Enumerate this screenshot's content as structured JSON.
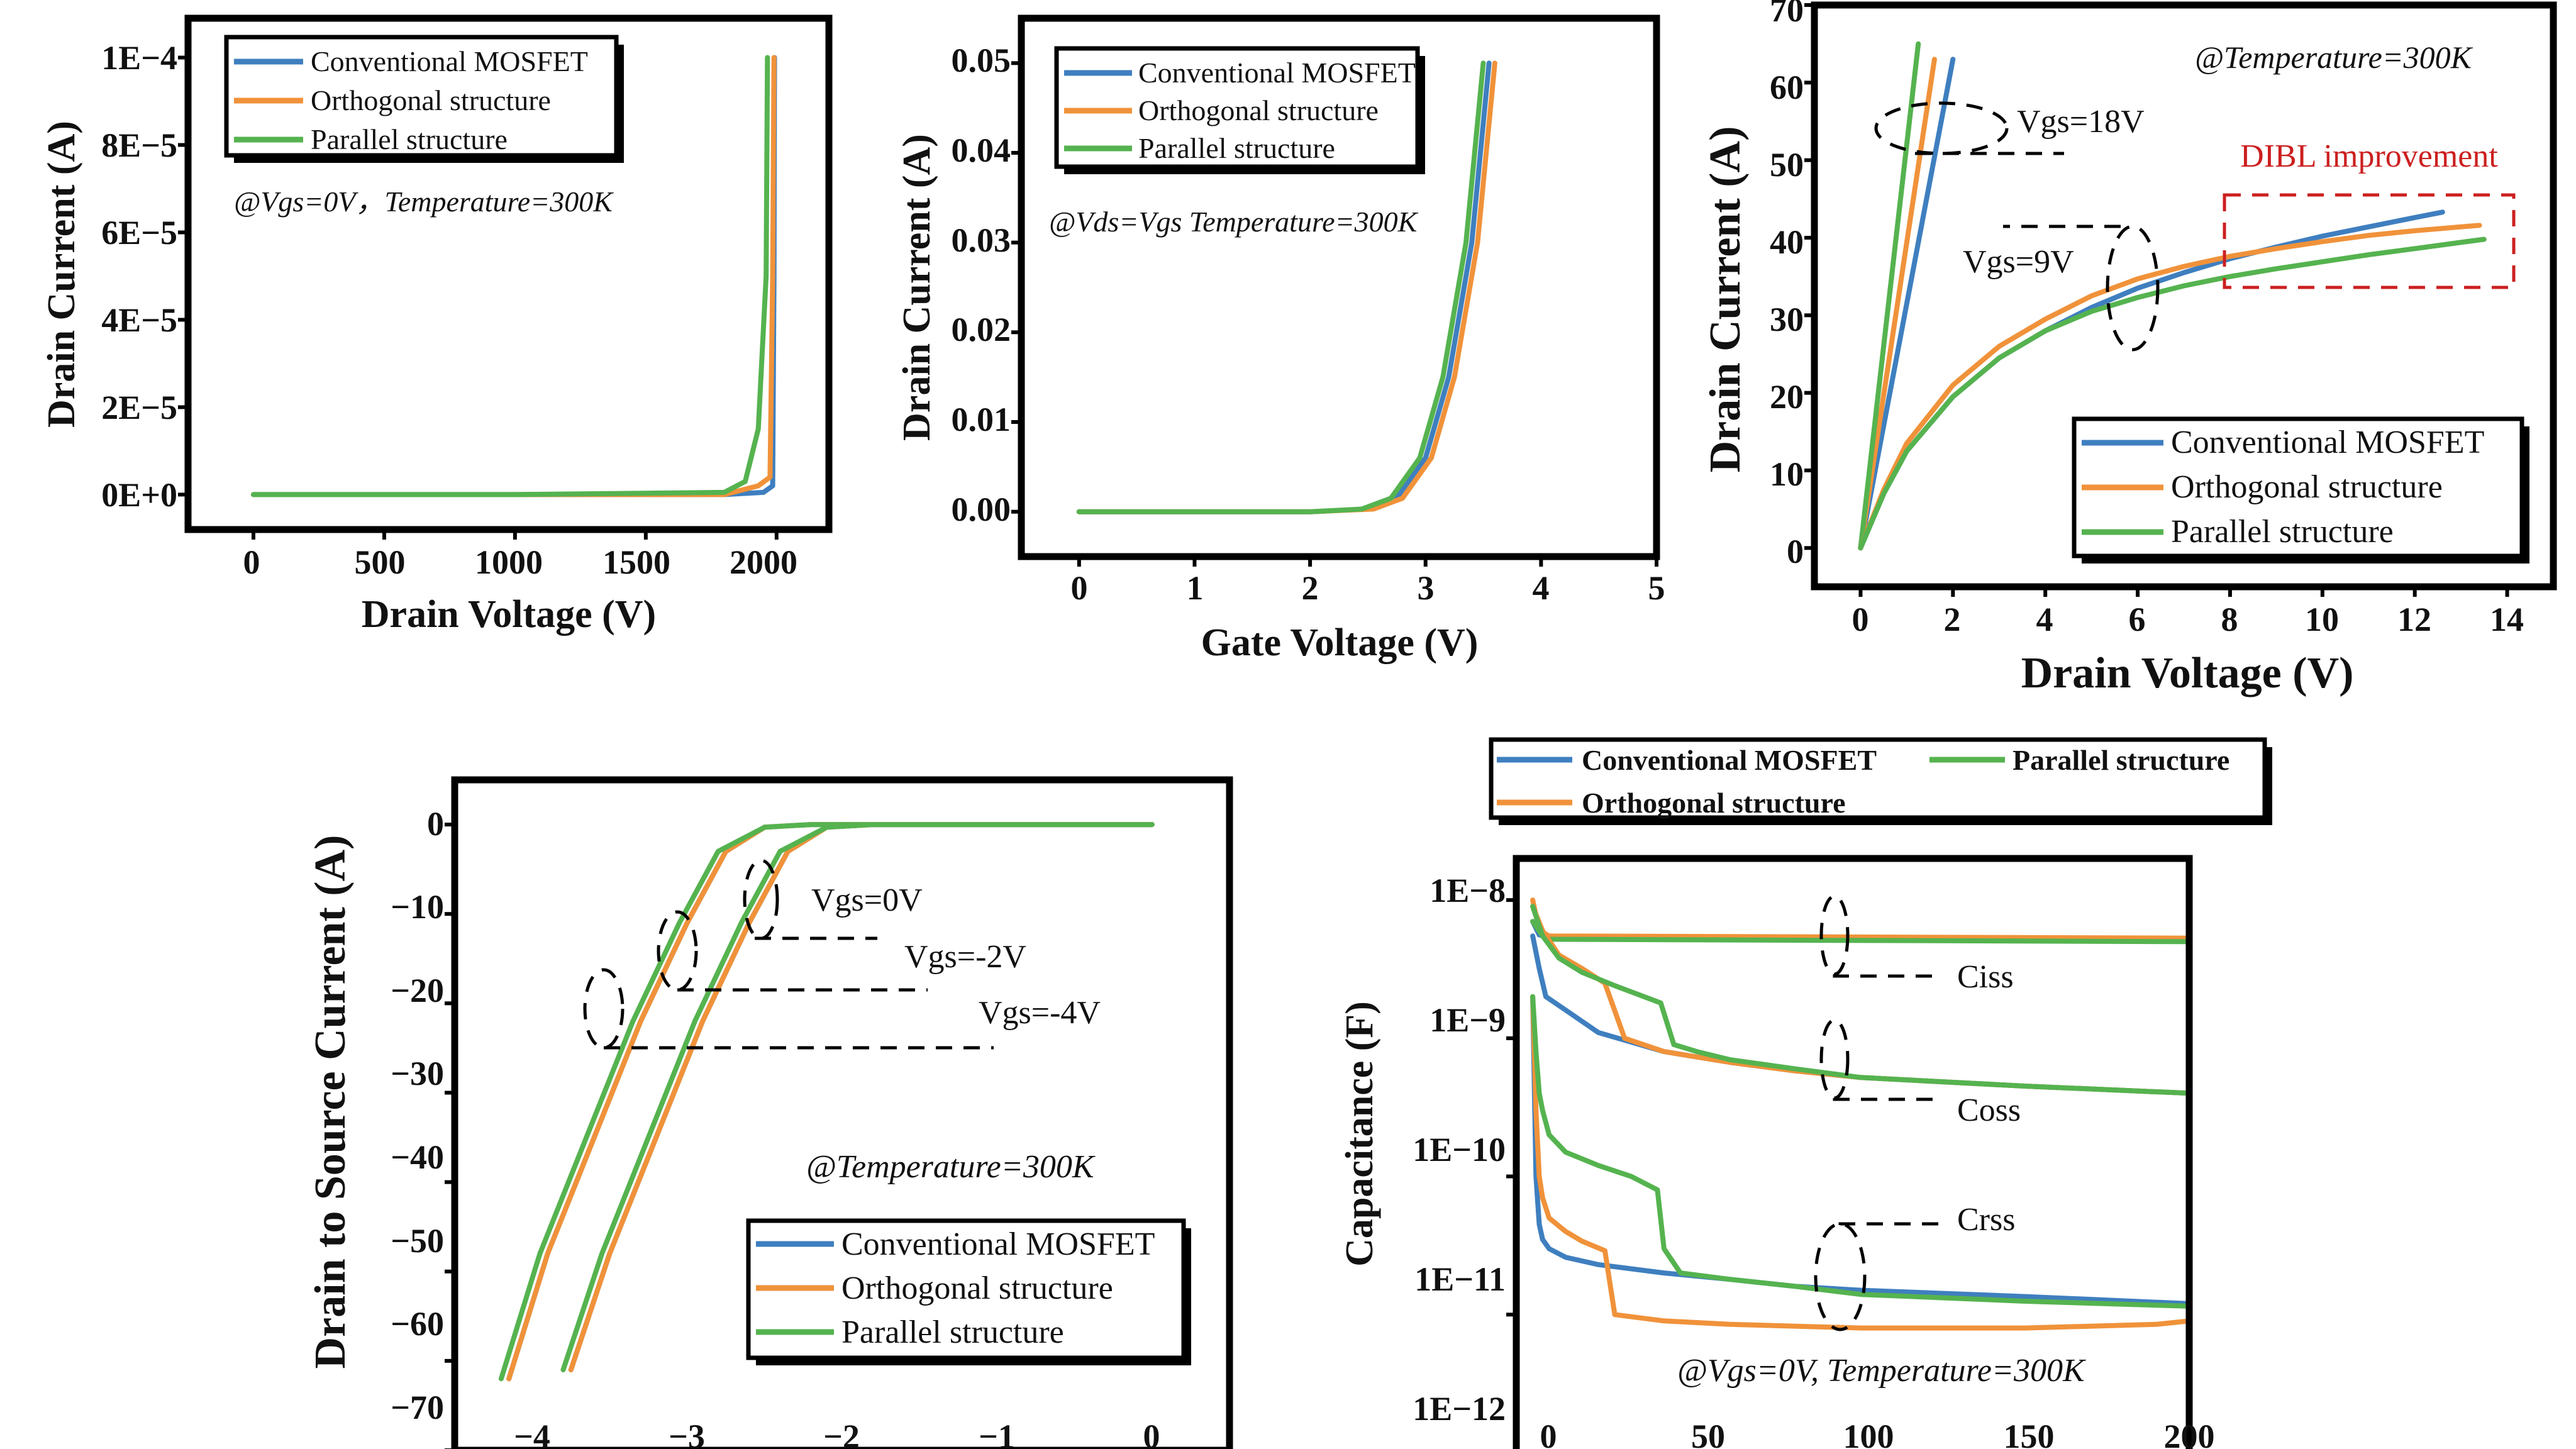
{
  "colors": {
    "conventional": "#3f7fbf",
    "orthogonal": "#f0923a",
    "parallel": "#55b34f",
    "annotation_red": "#cc1f1f"
  },
  "chart_data": [
    {
      "id": "a",
      "type": "line",
      "xlabel": "Drain Voltage (V)",
      "ylabel": "Drain Current (A)",
      "xlim": [
        -250,
        2200
      ],
      "ylim": [
        -8e-06,
        0.000109
      ],
      "xticks": [
        0,
        500,
        1000,
        1500,
        2000
      ],
      "xtick_labels": [
        "0",
        "500",
        "1000",
        "1500",
        "2000"
      ],
      "yticks": [
        0,
        2e-05,
        4e-05,
        6e-05,
        8e-05,
        0.0001
      ],
      "ytick_labels": [
        "0E+0",
        "2E−5",
        "4E−5",
        "6E−5",
        "8E−5",
        "1E−4"
      ],
      "legend": [
        "Conventional MOSFET",
        "Orthogonal structure",
        "Parallel structure"
      ],
      "legend_position": "top-left",
      "annotation": "@Vgs=0V，Temperature=300K",
      "series": [
        {
          "name": "Conventional MOSFET",
          "x": [
            0,
            1000,
            1800,
            1950,
            1985,
            1990,
            1992
          ],
          "y": [
            0,
            0,
            0,
            5e-07,
            2e-06,
            5e-05,
            0.0001
          ]
        },
        {
          "name": "Orthogonal structure",
          "x": [
            0,
            1000,
            1800,
            1930,
            1975,
            1985,
            1990
          ],
          "y": [
            0,
            0,
            0,
            2e-06,
            4e-06,
            5e-05,
            0.0001
          ]
        },
        {
          "name": "Parallel structure",
          "x": [
            0,
            1000,
            1800,
            1880,
            1930,
            1960,
            1965
          ],
          "y": [
            0,
            0,
            5e-07,
            3e-06,
            1.5e-05,
            5e-05,
            0.0001
          ]
        }
      ]
    },
    {
      "id": "b",
      "type": "line",
      "xlabel": "Gate Voltage (V)",
      "ylabel": "Drain Current (A)",
      "xlim": [
        -0.5,
        5
      ],
      "ylim": [
        -0.005,
        0.055
      ],
      "xticks": [
        0,
        1,
        2,
        3,
        4,
        5
      ],
      "xtick_labels": [
        "0",
        "1",
        "2",
        "3",
        "4",
        "5"
      ],
      "yticks": [
        0,
        0.01,
        0.02,
        0.03,
        0.04,
        0.05
      ],
      "ytick_labels": [
        "0.00",
        "0.01",
        "0.02",
        "0.03",
        "0.04",
        "0.05"
      ],
      "legend": [
        "Conventional MOSFET",
        "Orthogonal structure",
        "Parallel structure"
      ],
      "legend_position": "top-left",
      "annotation": "@Vds=Vgs Temperature=300K",
      "series": [
        {
          "name": "Conventional MOSFET",
          "x": [
            0,
            1,
            2,
            2.5,
            2.75,
            3,
            3.2,
            3.4,
            3.55
          ],
          "y": [
            0,
            0,
            0,
            0.0003,
            0.0015,
            0.006,
            0.015,
            0.03,
            0.05
          ]
        },
        {
          "name": "Orthogonal structure",
          "x": [
            0,
            1,
            2,
            2.55,
            2.8,
            3.05,
            3.25,
            3.45,
            3.6
          ],
          "y": [
            0,
            0,
            0,
            0.0003,
            0.0015,
            0.006,
            0.015,
            0.03,
            0.05
          ]
        },
        {
          "name": "Parallel structure",
          "x": [
            0,
            1,
            2,
            2.45,
            2.7,
            2.95,
            3.15,
            3.35,
            3.5
          ],
          "y": [
            0,
            0,
            0,
            0.0003,
            0.0015,
            0.006,
            0.015,
            0.03,
            0.05
          ]
        }
      ]
    },
    {
      "id": "c",
      "type": "line",
      "xlabel": "Drain Voltage (V)",
      "ylabel": "Drain Current (A)",
      "xlim": [
        -1,
        15
      ],
      "ylim": [
        -5,
        70
      ],
      "xticks": [
        0,
        2,
        4,
        6,
        8,
        10,
        12,
        14
      ],
      "xtick_labels": [
        "0",
        "2",
        "4",
        "6",
        "8",
        "10",
        "12",
        "14"
      ],
      "yticks": [
        0,
        10,
        20,
        30,
        40,
        50,
        60,
        70
      ],
      "ytick_labels": [
        "0",
        "10",
        "20",
        "30",
        "40",
        "50",
        "60",
        "70"
      ],
      "legend": [
        "Conventional MOSFET",
        "Orthogonal structure",
        "Parallel structure"
      ],
      "legend_position": "bottom-right",
      "annotations": [
        "@Temperature=300K",
        "Vgs=18V",
        "Vgs=9V",
        "DIBL improvement"
      ],
      "series": [
        {
          "name": "Conventional MOSFET (Vgs=18V)",
          "x": [
            0,
            2
          ],
          "y": [
            0,
            63
          ]
        },
        {
          "name": "Orthogonal structure (Vgs=18V)",
          "x": [
            0,
            1.6
          ],
          "y": [
            0,
            63
          ]
        },
        {
          "name": "Parallel structure (Vgs=18V)",
          "x": [
            0,
            1.25
          ],
          "y": [
            0,
            65
          ]
        },
        {
          "name": "Conventional MOSFET (Vgs=9V)",
          "x": [
            0,
            0.5,
            1,
            2,
            3,
            4,
            5,
            6,
            7,
            8,
            9,
            10,
            11,
            12,
            12.6
          ],
          "y": [
            0,
            7,
            12.5,
            19.5,
            24.5,
            28,
            31,
            33.5,
            35.5,
            37.3,
            38.8,
            40.2,
            41.4,
            42.6,
            43.3
          ]
        },
        {
          "name": "Orthogonal structure (Vgs=9V)",
          "x": [
            0,
            0.5,
            1,
            2,
            3,
            4,
            5,
            6,
            7,
            8,
            9,
            10,
            11,
            12,
            13,
            13.4
          ],
          "y": [
            0,
            7.5,
            13.5,
            21,
            26,
            29.5,
            32.5,
            34.7,
            36.3,
            37.6,
            38.6,
            39.5,
            40.3,
            40.9,
            41.4,
            41.6
          ]
        },
        {
          "name": "Parallel structure (Vgs=9V)",
          "x": [
            0,
            0.5,
            1,
            2,
            3,
            4,
            5,
            6,
            7,
            8,
            9,
            10,
            11,
            12,
            13,
            13.5
          ],
          "y": [
            0,
            7,
            12.5,
            19.5,
            24.5,
            28,
            30.5,
            32.3,
            33.8,
            35,
            36,
            36.9,
            37.8,
            38.6,
            39.4,
            39.8
          ]
        }
      ]
    },
    {
      "id": "d",
      "type": "line",
      "xlabel": "",
      "ylabel": "Drain to Source Current (A)",
      "xlim": [
        -4.5,
        0.5
      ],
      "ylim": [
        -70,
        5
      ],
      "xticks": [
        -4,
        -3,
        -2,
        -1,
        0
      ],
      "xtick_labels": [
        "−4",
        "−3",
        "−2",
        "−1",
        "0"
      ],
      "yticks": [
        0,
        -10,
        -20,
        -30,
        -40,
        -50,
        -60,
        -70
      ],
      "ytick_labels": [
        "0",
        "−10",
        "−20",
        "−30",
        "−40",
        "−50",
        "−60",
        "−70"
      ],
      "legend": [
        "Conventional MOSFET",
        "Orthogonal structure",
        "Parallel structure"
      ],
      "legend_position": "bottom-right",
      "annotations": [
        "Vgs=0V",
        "Vgs=-2V",
        "Vgs=-4V",
        "@Temperature=300K"
      ],
      "series": [
        {
          "name": "Conventional MOSFET",
          "x": [
            -4.15,
            -3.9,
            -3.6,
            -3.3,
            -3,
            -2.75,
            -2.5,
            -2.2,
            -1.5,
            -1,
            0
          ],
          "y": [
            -62,
            -48,
            -35,
            -22,
            -11,
            -3,
            -0.3,
            0,
            0,
            0,
            0
          ]
        },
        {
          "name": "Orthogonal structure",
          "x": [
            -4.15,
            -3.9,
            -3.6,
            -3.3,
            -3,
            -2.75,
            -2.5,
            -2.2,
            -1.5,
            -1,
            0
          ],
          "y": [
            -62,
            -48,
            -35,
            -22,
            -11,
            -3,
            -0.3,
            0,
            0,
            0,
            0
          ]
        },
        {
          "name": "Parallel structure",
          "x": [
            -4.2,
            -3.95,
            -3.65,
            -3.35,
            -3.05,
            -2.8,
            -2.5,
            -2.2,
            -1.5,
            -1,
            0
          ],
          "y": [
            -62,
            -48,
            -35,
            -22,
            -11,
            -3,
            -0.3,
            0,
            0,
            0,
            0
          ]
        },
        {
          "name": "Conventional MOSFET (2)",
          "x": [
            -3.75,
            -3.5,
            -3.2,
            -2.9,
            -2.6,
            -2.35,
            -2.1,
            -1.8,
            -1.3,
            -0.8,
            0
          ],
          "y": [
            -61,
            -48,
            -35,
            -22,
            -11,
            -3,
            -0.3,
            0,
            0,
            0,
            0
          ]
        },
        {
          "name": "Orthogonal structure (2)",
          "x": [
            -3.75,
            -3.5,
            -3.2,
            -2.9,
            -2.6,
            -2.35,
            -2.1,
            -1.8,
            -1.3,
            -0.8,
            0
          ],
          "y": [
            -61,
            -48,
            -35,
            -22,
            -11,
            -3,
            -0.3,
            0,
            0,
            0,
            0
          ]
        },
        {
          "name": "Parallel structure (2)",
          "x": [
            -3.8,
            -3.55,
            -3.25,
            -2.95,
            -2.65,
            -2.4,
            -2.1,
            -1.8,
            -1.3,
            -0.8,
            0
          ],
          "y": [
            -61,
            -48,
            -35,
            -22,
            -11,
            -3,
            -0.3,
            0,
            0,
            0,
            0
          ]
        }
      ]
    },
    {
      "id": "e",
      "type": "line",
      "xlabel": "",
      "ylabel": "Capacitance (F)",
      "xscale": "linear",
      "yscale": "log",
      "xlim": [
        -5,
        200
      ],
      "ylim": [
        1e-12,
        2e-08
      ],
      "xticks": [
        0,
        50,
        100,
        150,
        200
      ],
      "xtick_labels": [
        "0",
        "50",
        "100",
        "150",
        "200"
      ],
      "yticks": [
        1e-12,
        1e-11,
        1e-10,
        1e-09,
        1e-08
      ],
      "ytick_labels": [
        "1E−12",
        "1E−11",
        "1E−10",
        "1E−9",
        "1E−8"
      ],
      "legend": [
        "Conventional MOSFET",
        "Parallel structure",
        "Orthogonal structure"
      ],
      "legend_position": "top",
      "annotations": [
        "Ciss",
        "Coss",
        "Crss",
        "@Vgs=0V, Temperature=300K"
      ],
      "series": [
        {
          "name": "Conventional MOSFET (Ciss)",
          "x": [
            0,
            2,
            5,
            200
          ],
          "y": [
            7e-09,
            5.6e-09,
            5.3e-09,
            5.2e-09
          ]
        },
        {
          "name": "Orthogonal structure (Ciss)",
          "x": [
            0,
            2,
            5,
            200
          ],
          "y": [
            1e-08,
            6e-09,
            5.5e-09,
            5.3e-09
          ]
        },
        {
          "name": "Parallel structure (Ciss)",
          "x": [
            0,
            3,
            5,
            200
          ],
          "y": [
            7e-09,
            5.5e-09,
            5.2e-09,
            5e-09
          ]
        },
        {
          "name": "Conventional MOSFET (Coss)",
          "x": [
            0,
            2,
            4,
            10,
            20,
            40,
            60,
            80,
            100,
            150,
            200
          ],
          "y": [
            5.5e-09,
            3.2e-09,
            2e-09,
            1.6e-09,
            1.1e-09,
            8e-10,
            6.7e-10,
            5.8e-10,
            5.2e-10,
            4.5e-10,
            4e-10
          ]
        },
        {
          "name": "Orthogonal structure (Coss)",
          "x": [
            0,
            3,
            8,
            15,
            22,
            28,
            40,
            60,
            80,
            100,
            150,
            200
          ],
          "y": [
            9e-09,
            6e-09,
            4e-09,
            3.2e-09,
            2.5e-09,
            1e-09,
            8e-10,
            6.7e-10,
            5.8e-10,
            5.2e-10,
            4.5e-10,
            4e-10
          ]
        },
        {
          "name": "Parallel structure (Coss)",
          "x": [
            0,
            3,
            8,
            15,
            25,
            39,
            43,
            50,
            60,
            80,
            100,
            150,
            200
          ],
          "y": [
            9e-09,
            5.5e-09,
            3.8e-09,
            3e-09,
            2.4e-09,
            1.8e-09,
            9e-10,
            8e-10,
            7e-10,
            6e-10,
            5.2e-10,
            4.5e-10,
            4e-10
          ]
        },
        {
          "name": "Conventional MOSFET (Crss)",
          "x": [
            0,
            1,
            2,
            3,
            5,
            10,
            20,
            40,
            60,
            80,
            100,
            150,
            200
          ],
          "y": [
            2e-09,
            1e-10,
            4.5e-11,
            3.5e-11,
            3e-11,
            2.6e-11,
            2.3e-11,
            2e-11,
            1.8e-11,
            1.6e-11,
            1.5e-11,
            1.35e-11,
            1.2e-11
          ]
        },
        {
          "name": "Orthogonal structure (Crss)",
          "x": [
            0,
            1,
            2,
            3,
            5,
            10,
            15,
            22,
            25,
            40,
            60,
            100,
            150,
            190,
            200
          ],
          "y": [
            2e-09,
            3e-10,
            1e-10,
            7e-11,
            5e-11,
            4e-11,
            3.4e-11,
            2.9e-11,
            1e-11,
            9e-12,
            8.5e-12,
            8e-12,
            8e-12,
            8.5e-12,
            9e-12
          ]
        },
        {
          "name": "Parallel structure (Crss)",
          "x": [
            0,
            1,
            2,
            3,
            5,
            10,
            20,
            30,
            38,
            40,
            45,
            60,
            80,
            100,
            150,
            200
          ],
          "y": [
            2e-09,
            8e-10,
            4e-10,
            3e-10,
            2e-10,
            1.5e-10,
            1.2e-10,
            1e-10,
            8e-11,
            3e-11,
            2e-11,
            1.8e-11,
            1.6e-11,
            1.4e-11,
            1.25e-11,
            1.15e-11
          ]
        }
      ]
    }
  ]
}
